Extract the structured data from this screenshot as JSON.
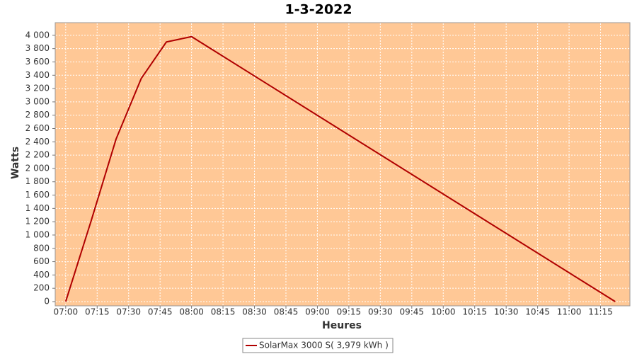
{
  "chart_data": {
    "type": "line",
    "title": "1-3-2022",
    "x_label": "Heures",
    "y_label": "Watts",
    "x": [
      "07:00",
      "07:12",
      "07:24",
      "07:36",
      "07:48",
      "08:00",
      "11:22"
    ],
    "series": [
      {
        "name": "SolarMax 3000 S( 3,979 kWh )",
        "color": "#b00000",
        "values": [
          0,
          1200,
          2440,
          3350,
          3900,
          3980,
          0
        ]
      }
    ],
    "xlim": [
      "06:55",
      "11:29"
    ],
    "xticks": [
      "07:00",
      "07:15",
      "07:30",
      "07:45",
      "08:00",
      "08:15",
      "08:30",
      "08:45",
      "09:00",
      "09:15",
      "09:30",
      "09:45",
      "10:00",
      "10:15",
      "10:30",
      "10:45",
      "11:00",
      "11:15"
    ],
    "ylim": [
      -64,
      4190
    ],
    "yticks": [
      0,
      200,
      400,
      600,
      800,
      {
        "value": 1000,
        "label": "1 000"
      },
      {
        "value": 1200,
        "label": "1 200"
      },
      {
        "value": 1400,
        "label": "1 400"
      },
      {
        "value": 1600,
        "label": "1 600"
      },
      {
        "value": 1800,
        "label": "1 800"
      },
      {
        "value": 2000,
        "label": "2 000"
      },
      {
        "value": 2200,
        "label": "2 200"
      },
      {
        "value": 2400,
        "label": "2 400"
      },
      {
        "value": 2600,
        "label": "2 600"
      },
      {
        "value": 2800,
        "label": "2 800"
      },
      {
        "value": 3000,
        "label": "3 000"
      },
      {
        "value": 3200,
        "label": "3 200"
      },
      {
        "value": 3400,
        "label": "3 400"
      },
      {
        "value": 3600,
        "label": "3 600"
      },
      {
        "value": 3800,
        "label": "3 800"
      },
      {
        "value": 4000,
        "label": "4 000"
      }
    ],
    "grid": true,
    "background": "#ffc896"
  }
}
